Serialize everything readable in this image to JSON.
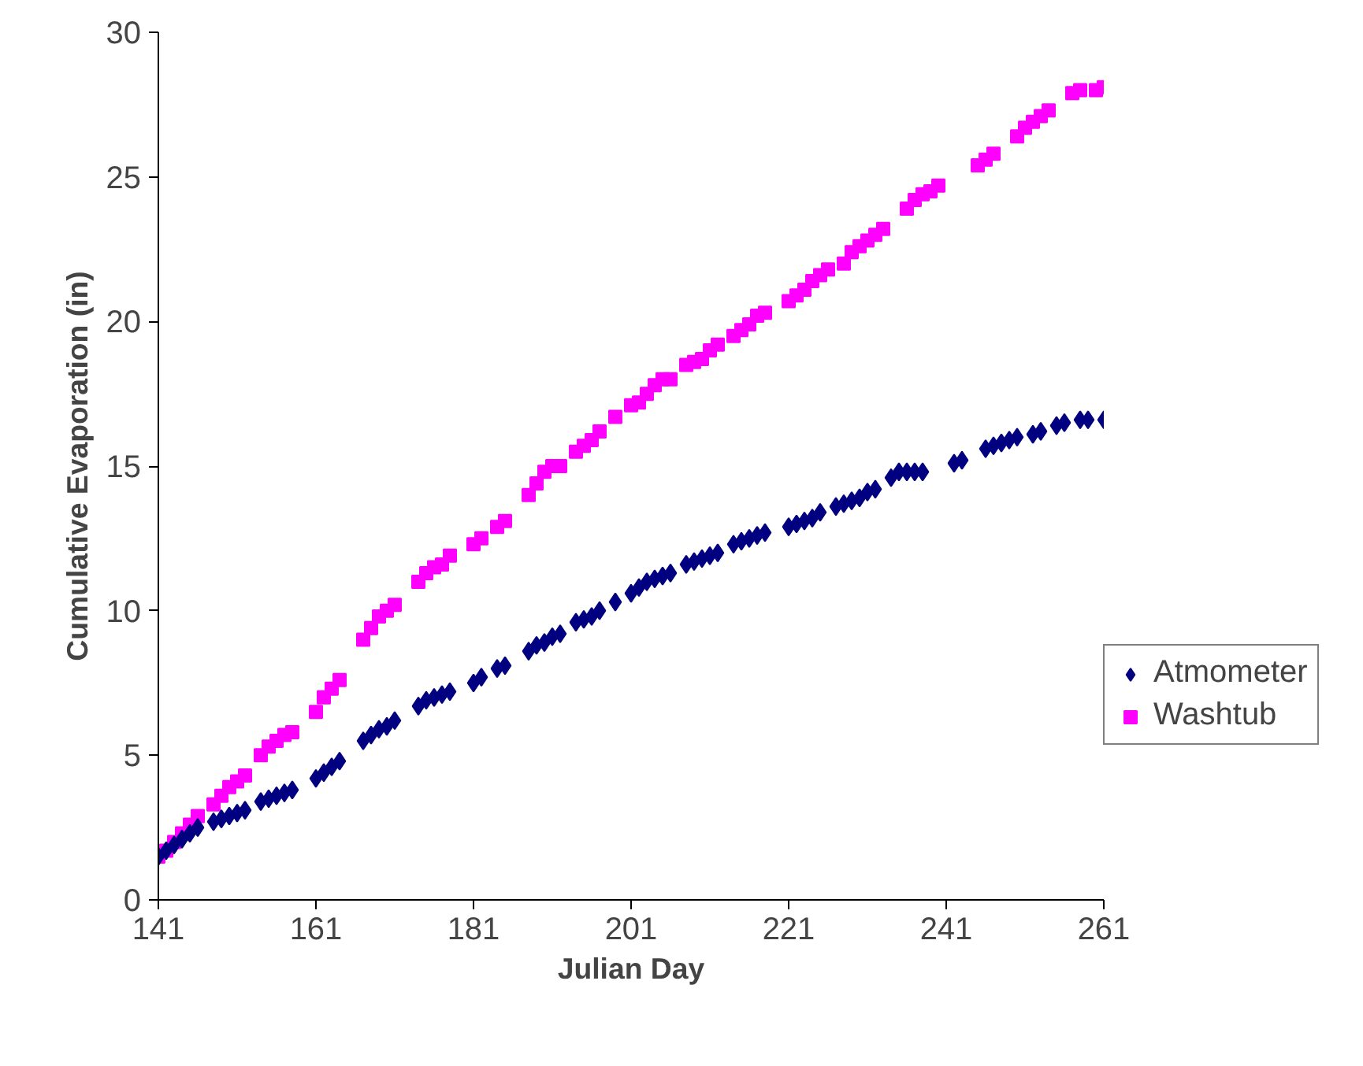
{
  "chart_data": {
    "type": "scatter",
    "xlabel": "Julian Day",
    "ylabel": "Cumulative Evaporation (in)",
    "xlim": [
      141,
      261
    ],
    "xticks": [
      141,
      161,
      181,
      201,
      221,
      241,
      261
    ],
    "ylim": [
      0,
      30
    ],
    "yticks": [
      0,
      5,
      10,
      15,
      20,
      25,
      30
    ],
    "grid": false,
    "legend": "right",
    "series": [
      {
        "name": "Atmometer",
        "color": "#000080",
        "marker": "diamond",
        "x": [
          141,
          142,
          143,
          144,
          145,
          146,
          148,
          149,
          150,
          151,
          152,
          154,
          155,
          156,
          157,
          158,
          161,
          162,
          163,
          164,
          167,
          168,
          169,
          170,
          171,
          174,
          175,
          176,
          177,
          178,
          181,
          182,
          184,
          185,
          188,
          189,
          190,
          191,
          192,
          194,
          195,
          196,
          197,
          199,
          201,
          202,
          203,
          204,
          205,
          206,
          208,
          209,
          210,
          211,
          212,
          214,
          215,
          216,
          217,
          218,
          221,
          222,
          223,
          224,
          225,
          227,
          228,
          229,
          230,
          231,
          232,
          234,
          235,
          236,
          237,
          238,
          242,
          243,
          246,
          247,
          248,
          249,
          250,
          252,
          253,
          255,
          256,
          258,
          259,
          261
        ],
        "values": [
          1.5,
          1.7,
          1.9,
          2.1,
          2.3,
          2.5,
          2.7,
          2.8,
          2.9,
          3.0,
          3.1,
          3.4,
          3.5,
          3.6,
          3.7,
          3.8,
          4.2,
          4.4,
          4.6,
          4.8,
          5.5,
          5.7,
          5.9,
          6.0,
          6.2,
          6.7,
          6.9,
          7.0,
          7.1,
          7.2,
          7.5,
          7.7,
          8.0,
          8.1,
          8.6,
          8.8,
          8.9,
          9.1,
          9.2,
          9.6,
          9.7,
          9.8,
          10.0,
          10.3,
          10.6,
          10.8,
          11.0,
          11.1,
          11.2,
          11.3,
          11.6,
          11.7,
          11.8,
          11.9,
          12.0,
          12.3,
          12.4,
          12.5,
          12.6,
          12.7,
          12.9,
          13.0,
          13.1,
          13.2,
          13.4,
          13.6,
          13.7,
          13.8,
          13.9,
          14.1,
          14.2,
          14.6,
          14.8,
          14.8,
          14.8,
          14.8,
          15.1,
          15.2,
          15.6,
          15.7,
          15.8,
          15.9,
          16.0,
          16.1,
          16.2,
          16.4,
          16.5,
          16.6,
          16.6,
          16.6
        ]
      },
      {
        "name": "Washtub",
        "color": "#ff00ff",
        "marker": "square",
        "x": [
          141,
          142,
          143,
          144,
          145,
          146,
          148,
          149,
          150,
          151,
          152,
          154,
          155,
          156,
          157,
          158,
          161,
          162,
          163,
          164,
          167,
          168,
          169,
          170,
          171,
          174,
          175,
          176,
          177,
          178,
          181,
          182,
          184,
          185,
          188,
          189,
          190,
          191,
          192,
          194,
          195,
          196,
          197,
          199,
          201,
          202,
          203,
          204,
          205,
          206,
          208,
          209,
          210,
          211,
          212,
          214,
          215,
          216,
          217,
          218,
          221,
          222,
          223,
          224,
          225,
          226,
          228,
          229,
          230,
          231,
          232,
          233,
          236,
          237,
          238,
          239,
          240,
          245,
          246,
          247,
          250,
          251,
          252,
          253,
          254,
          257,
          258,
          260,
          261
        ],
        "values": [
          1.5,
          1.7,
          2.0,
          2.3,
          2.6,
          2.9,
          3.3,
          3.6,
          3.9,
          4.1,
          4.3,
          5.0,
          5.3,
          5.5,
          5.7,
          5.8,
          6.5,
          7.0,
          7.3,
          7.6,
          9.0,
          9.4,
          9.8,
          10.0,
          10.2,
          11.0,
          11.3,
          11.5,
          11.6,
          11.9,
          12.3,
          12.5,
          12.9,
          13.1,
          14.0,
          14.4,
          14.8,
          15.0,
          15.0,
          15.5,
          15.7,
          15.9,
          16.2,
          16.7,
          17.1,
          17.2,
          17.5,
          17.8,
          18.0,
          18.0,
          18.5,
          18.6,
          18.7,
          19.0,
          19.2,
          19.5,
          19.7,
          19.9,
          20.2,
          20.3,
          20.7,
          20.9,
          21.1,
          21.4,
          21.6,
          21.8,
          22.0,
          22.4,
          22.6,
          22.8,
          23.0,
          23.2,
          23.9,
          24.2,
          24.4,
          24.5,
          24.7,
          25.4,
          25.6,
          25.8,
          26.4,
          26.7,
          26.9,
          27.1,
          27.3,
          27.9,
          28.0,
          28.0,
          28.1
        ]
      }
    ]
  }
}
